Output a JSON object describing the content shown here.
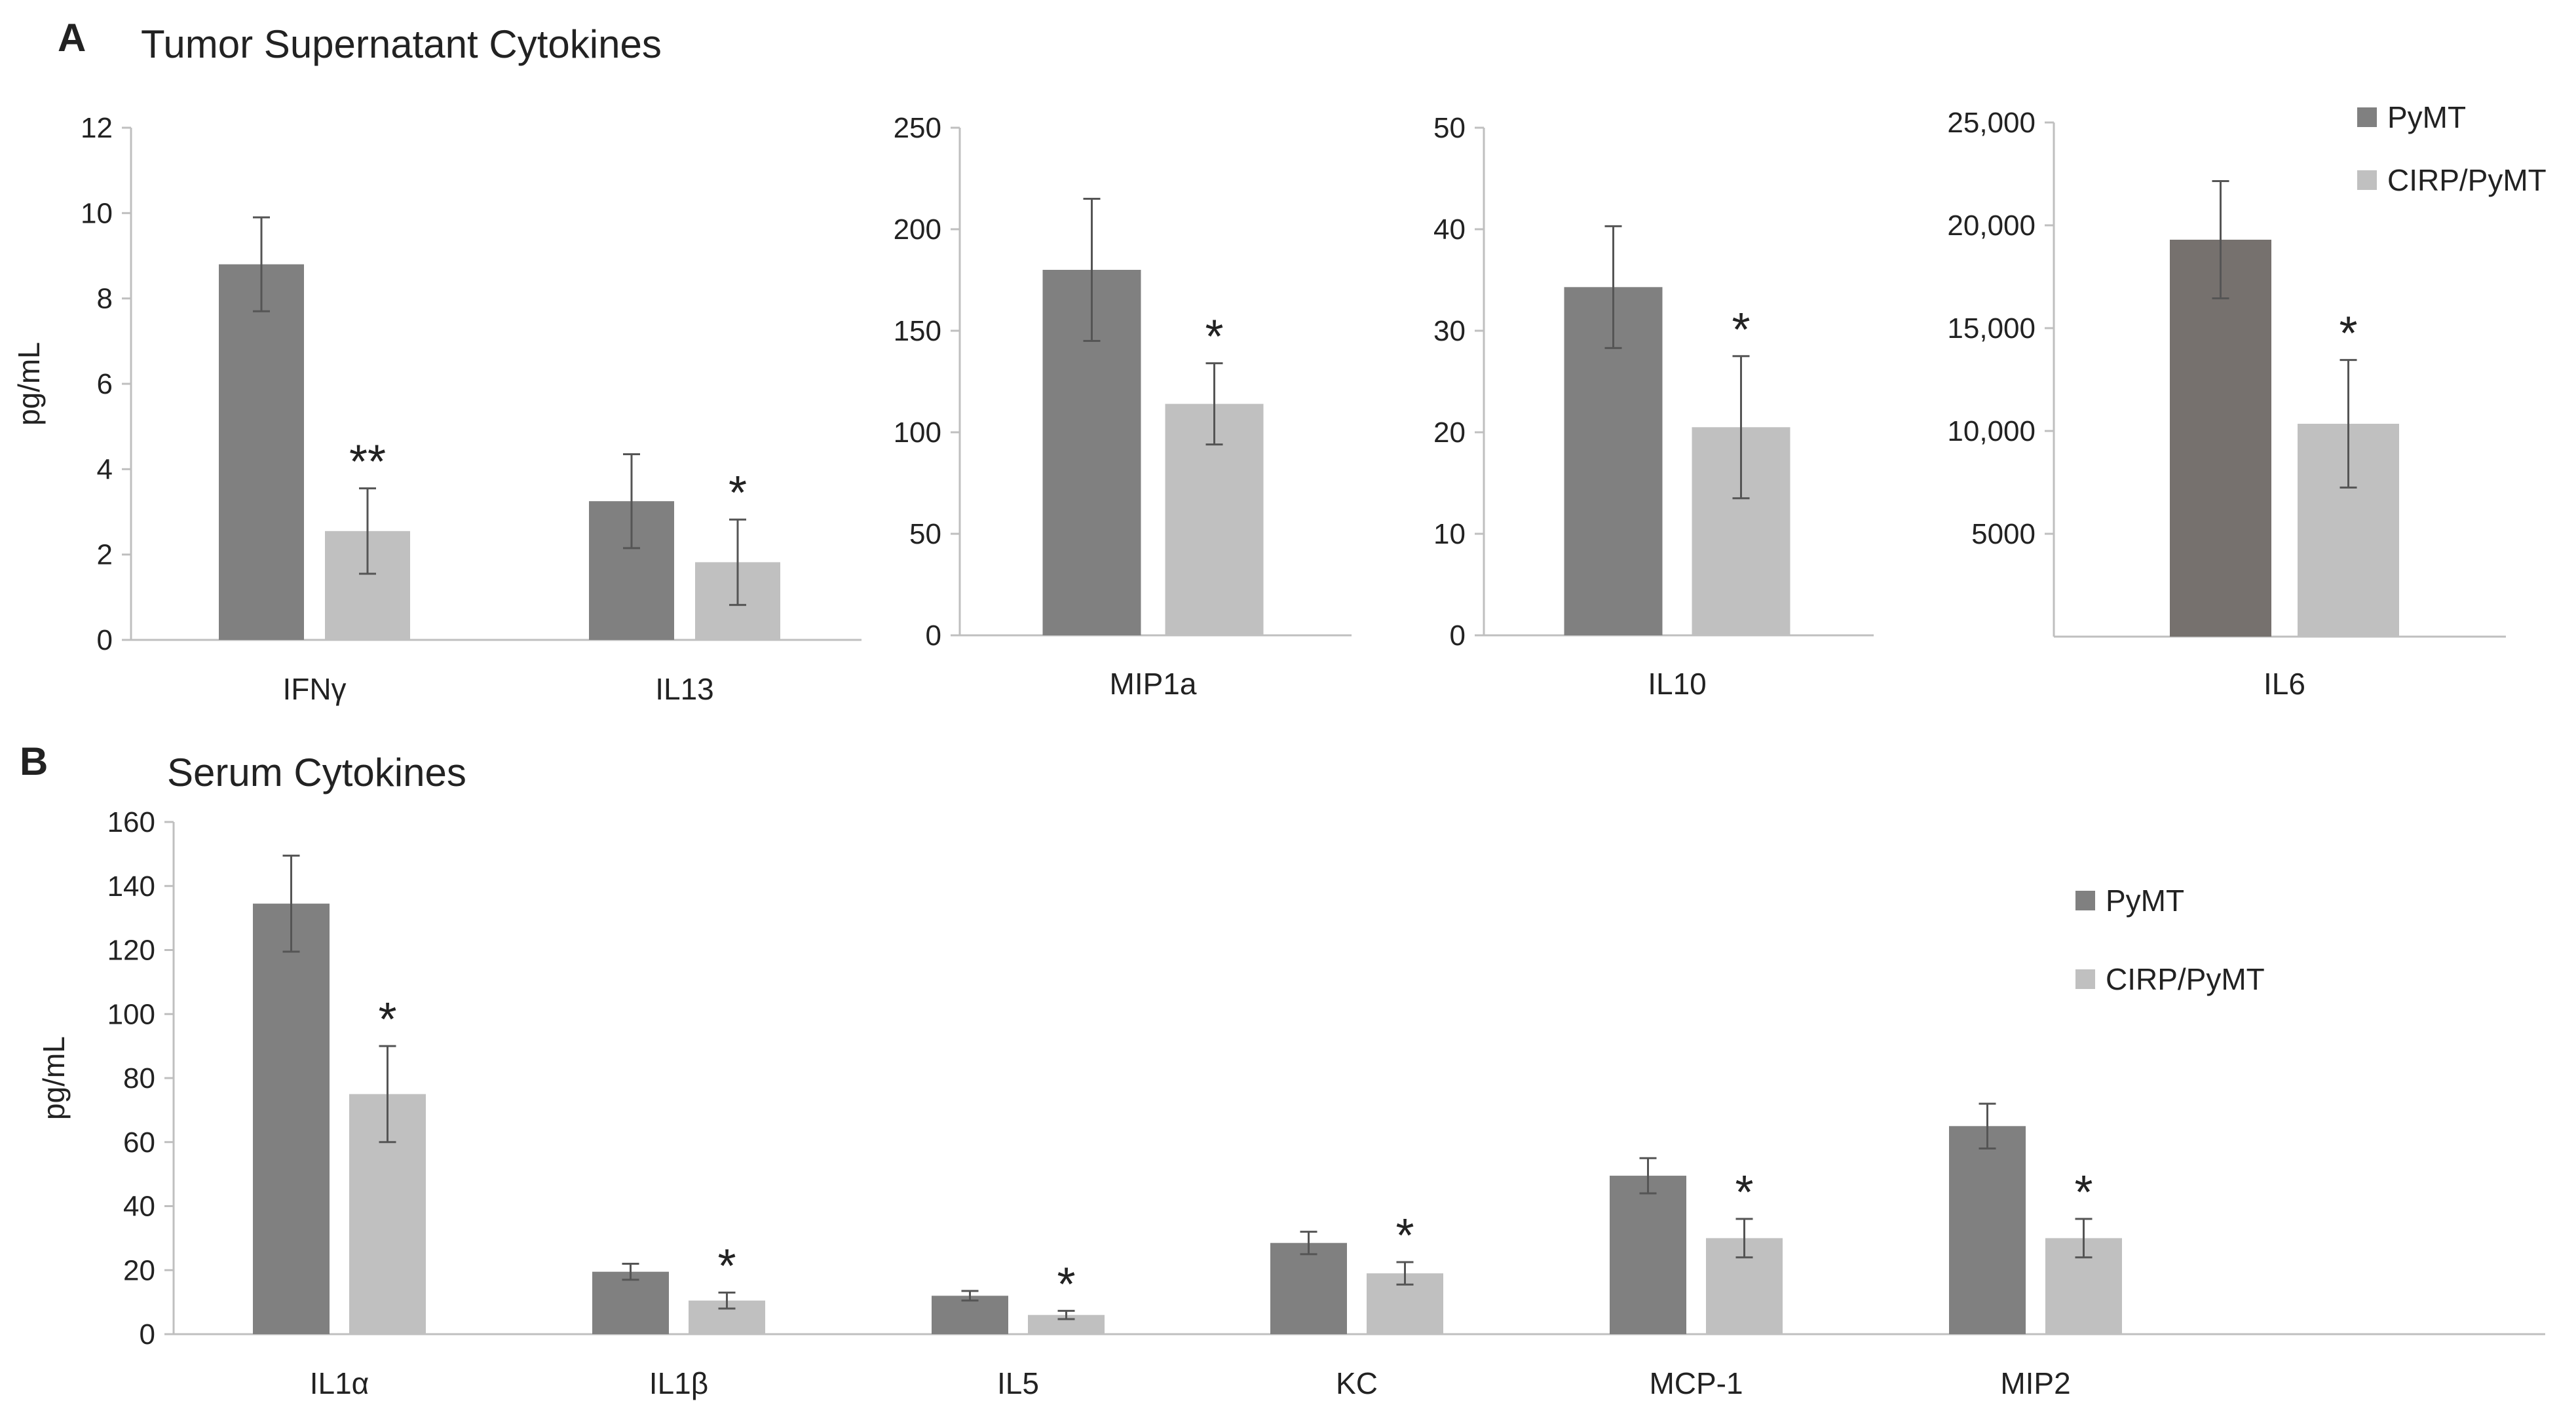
{
  "panels": {
    "A": {
      "letter": "A",
      "title": "Tumor Supernatant Cytokines"
    },
    "B": {
      "letter": "B",
      "title": "Serum Cytokines"
    }
  },
  "legend": {
    "series": [
      {
        "name": "PyMT",
        "color": "#808080"
      },
      {
        "name": "CIRP/PyMT",
        "color": "#c0c0c0"
      }
    ],
    "il6_pymt_color": "#76716e"
  },
  "chart_data": [
    {
      "id": "A1",
      "type": "bar",
      "title": "",
      "ylabel": "pg/mL",
      "ylim": [
        0,
        12
      ],
      "yticks": [
        0,
        2,
        4,
        6,
        8,
        10,
        12
      ],
      "ytick_labels": [
        "0",
        "2",
        "4",
        "6",
        "8",
        "10",
        "12"
      ],
      "categories": [
        "IFNγ",
        "IL13"
      ],
      "series": [
        {
          "name": "PyMT",
          "values": [
            8.8,
            3.25
          ],
          "errors": [
            1.1,
            1.1
          ]
        },
        {
          "name": "CIRP/PyMT",
          "values": [
            2.55,
            1.82
          ],
          "errors": [
            1.0,
            1.0
          ]
        }
      ],
      "annotations": [
        "**",
        "*"
      ]
    },
    {
      "id": "A2",
      "type": "bar",
      "ylim": [
        0,
        250
      ],
      "yticks": [
        0,
        50,
        100,
        150,
        200,
        250
      ],
      "ytick_labels": [
        "0",
        "50",
        "100",
        "150",
        "200",
        "250"
      ],
      "categories": [
        "MIP1a"
      ],
      "series": [
        {
          "name": "PyMT",
          "values": [
            180
          ],
          "errors": [
            35
          ]
        },
        {
          "name": "CIRP/PyMT",
          "values": [
            114
          ],
          "errors": [
            20
          ]
        }
      ],
      "annotations": [
        "*"
      ]
    },
    {
      "id": "A3",
      "type": "bar",
      "ylim": [
        0,
        50
      ],
      "yticks": [
        0,
        10,
        20,
        30,
        40,
        50
      ],
      "ytick_labels": [
        "0",
        "10",
        "20",
        "30",
        "40",
        "50"
      ],
      "categories": [
        "IL10"
      ],
      "series": [
        {
          "name": "PyMT",
          "values": [
            34.3
          ],
          "errors": [
            6
          ]
        },
        {
          "name": "CIRP/PyMT",
          "values": [
            20.5
          ],
          "errors": [
            7
          ]
        }
      ],
      "annotations": [
        "*"
      ]
    },
    {
      "id": "A4",
      "type": "bar",
      "ylim": [
        0,
        25000
      ],
      "yticks": [
        5000,
        10000,
        15000,
        20000,
        25000
      ],
      "ytick_labels": [
        "5000",
        "10,000",
        "15,000",
        "20,000",
        "25,000"
      ],
      "categories": [
        "IL6"
      ],
      "series": [
        {
          "name": "PyMT",
          "values": [
            19300
          ],
          "errors": [
            2850
          ]
        },
        {
          "name": "CIRP/PyMT",
          "values": [
            10350
          ],
          "errors": [
            3100
          ]
        }
      ],
      "annotations": [
        "*"
      ]
    },
    {
      "id": "B1",
      "type": "bar",
      "ylabel": "pg/mL",
      "ylim": [
        0,
        160
      ],
      "yticks": [
        0,
        20,
        40,
        60,
        80,
        100,
        120,
        140,
        160
      ],
      "ytick_labels": [
        "0",
        "20",
        "40",
        "60",
        "80",
        "100",
        "120",
        "140",
        "160"
      ],
      "categories": [
        "IL1α",
        "IL1β",
        "IL5",
        "KC",
        "MCP-1",
        "MIP2"
      ],
      "series": [
        {
          "name": "PyMT",
          "values": [
            134.5,
            19.5,
            12,
            28.5,
            49.5,
            65
          ],
          "errors": [
            15,
            2.5,
            1.5,
            3.5,
            5.5,
            7
          ]
        },
        {
          "name": "CIRP/PyMT",
          "values": [
            75,
            10.5,
            6,
            19,
            30,
            30
          ],
          "errors": [
            15,
            2.5,
            1.3,
            3.5,
            6,
            6
          ]
        }
      ],
      "annotations": [
        "*",
        "*",
        "*",
        "*",
        "*",
        "*"
      ]
    }
  ]
}
